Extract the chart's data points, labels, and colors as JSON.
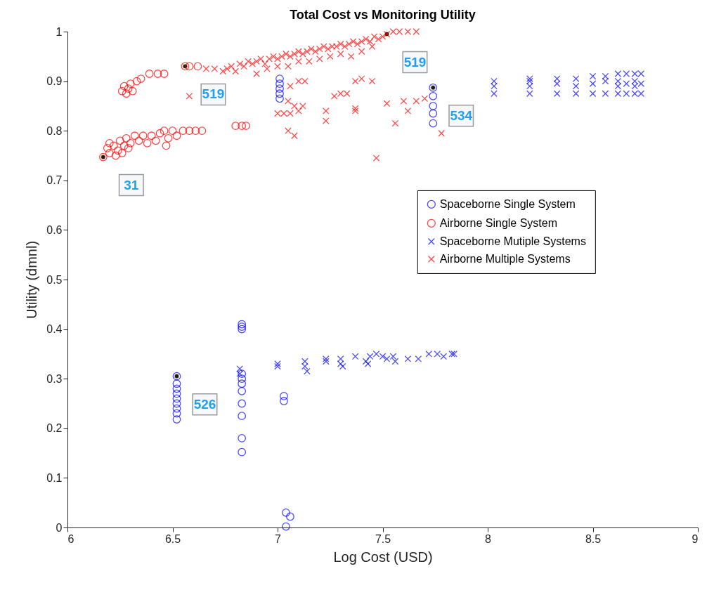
{
  "chart_data": {
    "type": "scatter",
    "title": "Total Cost vs Monitoring Utility",
    "xlabel": "Log Cost (USD)",
    "ylabel": "Utility (dmnl)",
    "xlim": [
      6,
      9
    ],
    "ylim": [
      0,
      1
    ],
    "xticks": [
      6,
      6.5,
      7,
      7.5,
      8,
      8.5,
      9
    ],
    "yticks": [
      0,
      0.1,
      0.2,
      0.3,
      0.4,
      0.5,
      0.6,
      0.7,
      0.8,
      0.9,
      1
    ],
    "grid": false,
    "legend": "right",
    "series": [
      {
        "name": "Spaceborne Single System",
        "color": "#0000ff",
        "marker": "circle",
        "x": [
          6.52,
          6.52,
          6.52,
          6.52,
          6.52,
          6.52,
          6.52,
          6.52,
          6.52,
          6.83,
          6.83,
          6.83,
          6.83,
          6.83,
          6.83,
          6.83,
          6.83,
          6.83,
          6.83,
          6.83,
          7.03,
          7.03,
          7.04,
          7.06,
          7.04,
          7.01,
          7.01,
          7.01,
          7.01,
          7.01,
          7.74,
          7.74,
          7.74,
          7.74,
          7.74
        ],
        "values": [
          0.305,
          0.29,
          0.28,
          0.27,
          0.26,
          0.25,
          0.24,
          0.23,
          0.218,
          0.41,
          0.405,
          0.4,
          0.31,
          0.3,
          0.29,
          0.275,
          0.25,
          0.225,
          0.18,
          0.152,
          0.265,
          0.255,
          0.03,
          0.022,
          0.002,
          0.905,
          0.895,
          0.885,
          0.875,
          0.865,
          0.887,
          0.87,
          0.85,
          0.835,
          0.815
        ]
      },
      {
        "name": "Airborne Single System",
        "color": "#ff0000",
        "marker": "circle",
        "x": [
          6.26,
          6.27,
          6.28,
          6.29,
          6.3,
          6.31,
          6.33,
          6.35,
          6.39,
          6.43,
          6.46,
          6.56,
          6.58,
          6.62,
          6.17,
          6.19,
          6.2,
          6.22,
          6.24,
          6.25,
          6.27,
          6.28,
          6.3,
          6.32,
          6.34,
          6.36,
          6.38,
          6.4,
          6.42,
          6.44,
          6.46,
          6.47,
          6.48,
          6.5,
          6.52,
          6.55,
          6.58,
          6.61,
          6.64,
          6.2,
          6.23,
          6.26,
          6.29,
          6.8,
          6.83,
          6.85
        ],
        "values": [
          0.88,
          0.89,
          0.875,
          0.885,
          0.895,
          0.88,
          0.9,
          0.905,
          0.915,
          0.915,
          0.915,
          0.93,
          0.93,
          0.93,
          0.747,
          0.765,
          0.775,
          0.77,
          0.76,
          0.78,
          0.77,
          0.785,
          0.775,
          0.79,
          0.78,
          0.79,
          0.775,
          0.79,
          0.78,
          0.795,
          0.8,
          0.77,
          0.785,
          0.8,
          0.79,
          0.8,
          0.8,
          0.8,
          0.8,
          0.755,
          0.75,
          0.755,
          0.765,
          0.81,
          0.81,
          0.81
        ]
      },
      {
        "name": "Spaceborne Mutiple Systems",
        "color": "#0000ff",
        "marker": "cross",
        "x": [
          6.82,
          6.82,
          7.0,
          7.0,
          7.13,
          7.13,
          7.14,
          7.23,
          7.23,
          7.3,
          7.3,
          7.31,
          7.37,
          7.42,
          7.43,
          7.44,
          7.47,
          7.5,
          7.52,
          7.55,
          7.56,
          7.62,
          7.67,
          7.72,
          7.76,
          7.79,
          7.83,
          7.84,
          8.03,
          8.03,
          8.03,
          8.2,
          8.2,
          8.2,
          8.2,
          8.33,
          8.33,
          8.33,
          8.42,
          8.42,
          8.42,
          8.5,
          8.5,
          8.5,
          8.56,
          8.56,
          8.56,
          8.62,
          8.62,
          8.62,
          8.62,
          8.66,
          8.66,
          8.66,
          8.7,
          8.7,
          8.7,
          8.7,
          8.73,
          8.73,
          8.73
        ],
        "values": [
          0.32,
          0.31,
          0.33,
          0.325,
          0.335,
          0.325,
          0.315,
          0.34,
          0.335,
          0.34,
          0.33,
          0.325,
          0.345,
          0.335,
          0.33,
          0.345,
          0.35,
          0.345,
          0.34,
          0.345,
          0.335,
          0.34,
          0.34,
          0.35,
          0.35,
          0.345,
          0.35,
          0.35,
          0.9,
          0.89,
          0.875,
          0.905,
          0.9,
          0.89,
          0.875,
          0.905,
          0.895,
          0.875,
          0.905,
          0.89,
          0.875,
          0.91,
          0.895,
          0.875,
          0.91,
          0.9,
          0.875,
          0.915,
          0.9,
          0.89,
          0.875,
          0.915,
          0.895,
          0.875,
          0.915,
          0.9,
          0.89,
          0.875,
          0.915,
          0.895,
          0.875
        ]
      },
      {
        "name": "Airborne Multiple Systems",
        "color": "#ff0000",
        "marker": "cross",
        "x": [
          6.66,
          6.7,
          6.74,
          6.76,
          6.78,
          6.8,
          6.82,
          6.84,
          6.86,
          6.88,
          6.9,
          6.92,
          6.94,
          6.96,
          6.98,
          7.0,
          7.02,
          7.04,
          7.06,
          7.08,
          7.1,
          7.12,
          7.14,
          7.16,
          7.18,
          7.2,
          7.22,
          7.24,
          7.26,
          7.28,
          7.3,
          7.32,
          7.34,
          7.36,
          7.38,
          7.4,
          7.42,
          7.44,
          7.46,
          7.48,
          7.5,
          7.52,
          7.55,
          7.58,
          7.62,
          7.66,
          6.9,
          6.95,
          7.0,
          7.05,
          7.1,
          7.15,
          7.2,
          7.25,
          7.3,
          7.35,
          7.4,
          7.45,
          6.58,
          7.0,
          7.03,
          7.06,
          7.1,
          7.08,
          7.05,
          7.08,
          7.12,
          7.05,
          7.06,
          7.1,
          7.13,
          7.23,
          7.23,
          7.27,
          7.3,
          7.33,
          7.37,
          7.37,
          7.37,
          7.4,
          7.45,
          7.47,
          7.52,
          7.56,
          7.6,
          7.62,
          7.66,
          7.7,
          7.78
        ],
        "values": [
          0.925,
          0.925,
          0.92,
          0.925,
          0.93,
          0.92,
          0.935,
          0.93,
          0.94,
          0.935,
          0.94,
          0.945,
          0.935,
          0.945,
          0.95,
          0.945,
          0.95,
          0.955,
          0.95,
          0.955,
          0.96,
          0.955,
          0.96,
          0.965,
          0.96,
          0.965,
          0.97,
          0.965,
          0.97,
          0.97,
          0.975,
          0.97,
          0.975,
          0.98,
          0.975,
          0.98,
          0.985,
          0.98,
          0.99,
          0.985,
          0.99,
          0.995,
          1.0,
          1.0,
          1.0,
          1.0,
          0.915,
          0.925,
          0.93,
          0.93,
          0.94,
          0.94,
          0.945,
          0.95,
          0.955,
          0.95,
          0.96,
          0.97,
          0.87,
          0.835,
          0.835,
          0.835,
          0.84,
          0.79,
          0.86,
          0.85,
          0.85,
          0.8,
          0.89,
          0.9,
          0.9,
          0.84,
          0.82,
          0.87,
          0.875,
          0.875,
          0.845,
          0.84,
          0.9,
          0.905,
          0.9,
          0.745,
          0.855,
          0.815,
          0.86,
          0.84,
          0.86,
          0.865,
          0.795
        ]
      }
    ],
    "annotations": [
      {
        "text": "31",
        "x": 6.17,
        "y": 0.747
      },
      {
        "text": "519",
        "x": 6.56,
        "y": 0.93
      },
      {
        "text": "519",
        "x": 7.52,
        "y": 0.995
      },
      {
        "text": "534",
        "x": 7.74,
        "y": 0.887
      },
      {
        "text": "526",
        "x": 6.52,
        "y": 0.305
      }
    ]
  }
}
